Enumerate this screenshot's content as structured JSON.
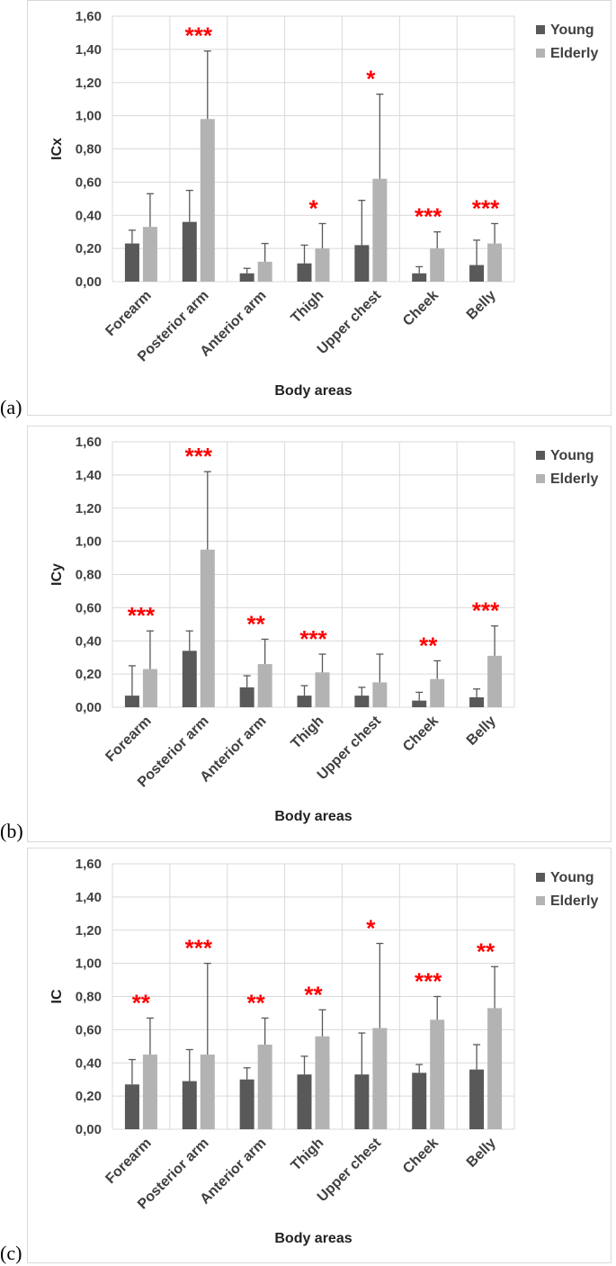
{
  "colors": {
    "young": "#595959",
    "elderly": "#b3b3b3",
    "grid": "#d9d9d9",
    "error": "#595959",
    "significance": "#ff0000"
  },
  "legend": {
    "young": "Young",
    "elderly": "Elderly"
  },
  "chart_data": [
    {
      "panel": "(a)",
      "type": "bar",
      "ylabel": "ICx",
      "xlabel": "Body areas",
      "ylim": [
        0,
        1.6
      ],
      "yticks": [
        "0,00",
        "0,20",
        "0,40",
        "0,60",
        "0,80",
        "1,00",
        "1,20",
        "1,40",
        "1,60"
      ],
      "categories": [
        "Forearm",
        "Posterior arm",
        "Anterior arm",
        "Thigh",
        "Upper chest",
        "Cheek",
        "Belly"
      ],
      "series": [
        {
          "name": "Young",
          "values": [
            0.23,
            0.36,
            0.05,
            0.11,
            0.22,
            0.05,
            0.1
          ],
          "error": [
            0.08,
            0.19,
            0.03,
            0.11,
            0.27,
            0.04,
            0.15
          ]
        },
        {
          "name": "Elderly",
          "values": [
            0.33,
            0.98,
            0.12,
            0.2,
            0.62,
            0.2,
            0.23
          ],
          "error": [
            0.2,
            0.41,
            0.11,
            0.15,
            0.51,
            0.1,
            0.12
          ]
        }
      ],
      "significance": [
        "",
        "***",
        "",
        "*",
        "*",
        "***",
        "***"
      ]
    },
    {
      "panel": "(b)",
      "type": "bar",
      "ylabel": "ICy",
      "xlabel": "Body areas",
      "ylim": [
        0,
        1.6
      ],
      "yticks": [
        "0,00",
        "0,20",
        "0,40",
        "0,60",
        "0,80",
        "1,00",
        "1,20",
        "1,40",
        "1,60"
      ],
      "categories": [
        "Forearm",
        "Posterior arm",
        "Anterior arm",
        "Thigh",
        "Upper chest",
        "Cheek",
        "Belly"
      ],
      "series": [
        {
          "name": "Young",
          "values": [
            0.07,
            0.34,
            0.12,
            0.07,
            0.07,
            0.04,
            0.06
          ],
          "error": [
            0.18,
            0.12,
            0.07,
            0.06,
            0.05,
            0.05,
            0.05
          ]
        },
        {
          "name": "Elderly",
          "values": [
            0.23,
            0.95,
            0.26,
            0.21,
            0.15,
            0.17,
            0.31
          ],
          "error": [
            0.23,
            0.47,
            0.15,
            0.11,
            0.17,
            0.11,
            0.18
          ]
        }
      ],
      "significance": [
        "***",
        "***",
        "**",
        "***",
        "",
        "**",
        "***"
      ]
    },
    {
      "panel": "(c)",
      "type": "bar",
      "ylabel": "IC",
      "xlabel": "Body areas",
      "ylim": [
        0,
        1.6
      ],
      "yticks": [
        "0,00",
        "0,20",
        "0,40",
        "0,60",
        "0,80",
        "1,00",
        "1,20",
        "1,40",
        "1,60"
      ],
      "categories": [
        "Forearm",
        "Posterior arm",
        "Anterior arm",
        "Thigh",
        "Upper chest",
        "Cheek",
        "Belly"
      ],
      "series": [
        {
          "name": "Young",
          "values": [
            0.27,
            0.29,
            0.3,
            0.33,
            0.33,
            0.34,
            0.36
          ],
          "error": [
            0.15,
            0.19,
            0.07,
            0.11,
            0.25,
            0.05,
            0.15
          ]
        },
        {
          "name": "Elderly",
          "values": [
            0.45,
            0.45,
            0.51,
            0.56,
            0.61,
            0.66,
            0.73
          ],
          "error": [
            0.22,
            0.55,
            0.16,
            0.16,
            0.51,
            0.14,
            0.25
          ]
        }
      ],
      "significance": [
        "**",
        "***",
        "**",
        "**",
        "*",
        "***",
        "**"
      ]
    }
  ]
}
